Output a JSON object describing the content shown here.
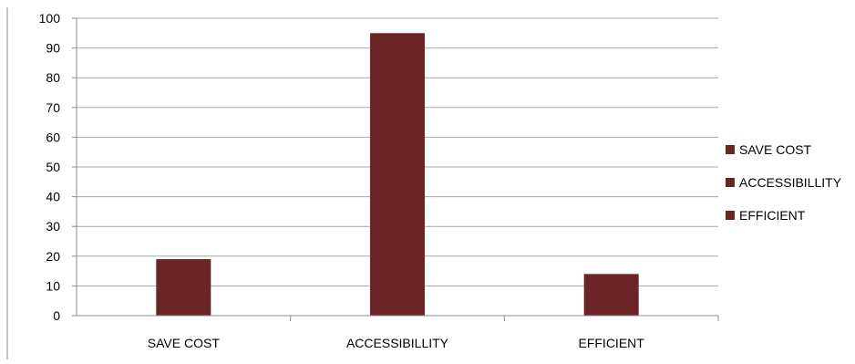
{
  "chart_data": {
    "type": "bar",
    "title": "",
    "xlabel": "",
    "ylabel": "",
    "categories": [
      "SAVE COST",
      "ACCESSIBILLITY",
      "EFFICIENT"
    ],
    "values": [
      19,
      95,
      14
    ],
    "ylim": [
      0,
      100
    ],
    "yticks": [
      0,
      10,
      20,
      30,
      40,
      50,
      60,
      70,
      80,
      90,
      100
    ],
    "grid": true,
    "legend": {
      "placement": "right",
      "entries": [
        "SAVE COST",
        "ACCESSIBILLITY",
        "EFFICIENT"
      ]
    },
    "colors": {
      "bar": "#6b2526",
      "grid": "#a6a6a6",
      "axis": "#8c8c8c",
      "frame": "#8c8c8c"
    }
  }
}
